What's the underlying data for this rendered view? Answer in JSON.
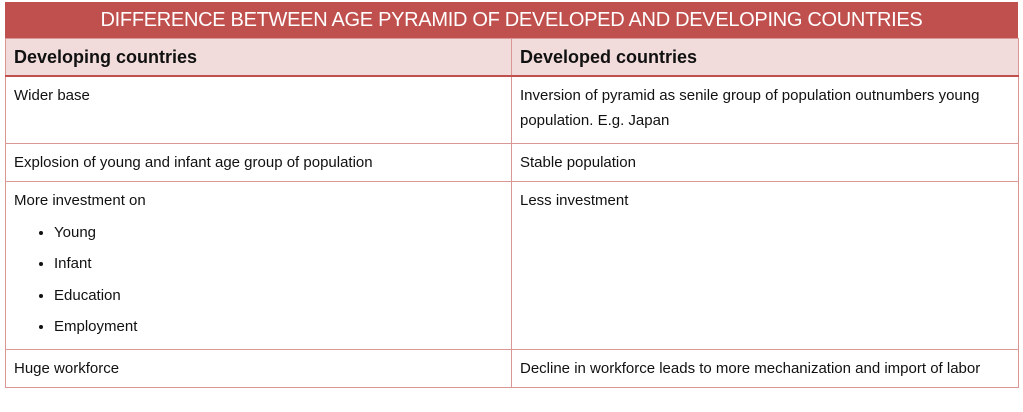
{
  "title": "DIFFERENCE BETWEEN AGE PYRAMID OF DEVELOPED AND DEVELOPING COUNTRIES",
  "table": {
    "header": [
      "Developing countries",
      "Developed countries"
    ],
    "rows": [
      [
        "Wider base",
        "Inversion of pyramid as senile group of population outnumbers young population. E.g. Japan"
      ],
      [
        "Explosion of young and infant age group of population",
        "Stable population"
      ],
      [
        "More investment on",
        "Less investment"
      ],
      [
        "Huge workforce",
        "Decline in workforce leads to more mechanization and import of labor"
      ]
    ],
    "bullets": [
      "Young",
      "Infant",
      "Education",
      "Employment"
    ]
  }
}
